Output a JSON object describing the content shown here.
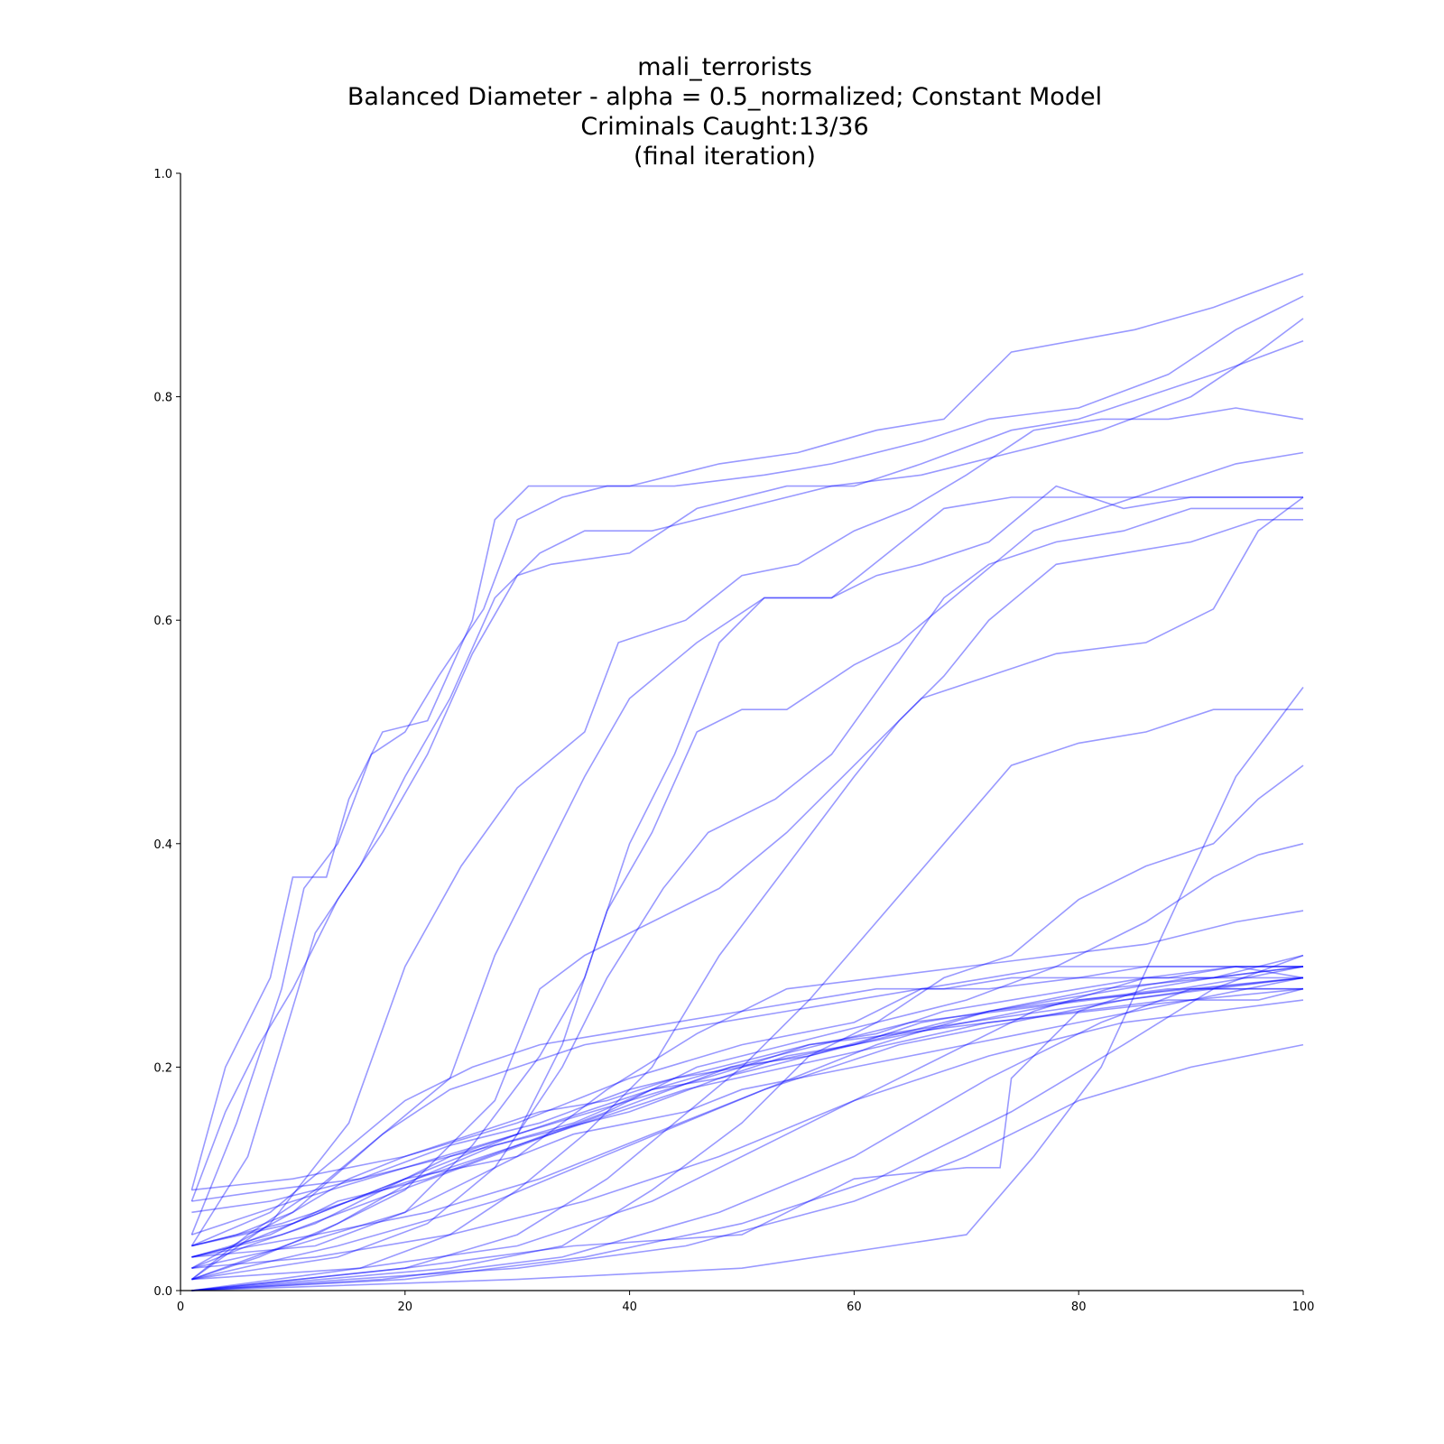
{
  "colors": {
    "line": "#0000ff",
    "axis": "#000000",
    "background": "#ffffff"
  },
  "chart_data": {
    "type": "line",
    "title_lines": [
      "mali_terrorists",
      "Balanced Diameter - alpha = 0.5_normalized; Constant Model",
      "Criminals Caught:13/36",
      "(final iteration)"
    ],
    "xlim": [
      0,
      100
    ],
    "ylim": [
      0,
      1.0
    ],
    "xticks": [
      0,
      20,
      40,
      60,
      80,
      100
    ],
    "yticks": [
      0.0,
      0.2,
      0.4,
      0.6,
      0.8,
      1.0
    ],
    "xtick_labels": [
      "0",
      "20",
      "40",
      "60",
      "80",
      "100"
    ],
    "ytick_labels": [
      "0.0",
      "0.2",
      "0.4",
      "0.6",
      "0.8",
      "1.0"
    ],
    "grid": false,
    "legend": false,
    "line_alpha": 0.4,
    "series": [
      {
        "x": [
          1,
          4,
          8,
          10,
          13,
          15,
          18,
          22,
          26,
          28,
          31,
          35,
          40,
          48,
          55,
          62,
          68,
          74,
          85,
          92,
          100
        ],
        "y": [
          0.09,
          0.2,
          0.28,
          0.37,
          0.37,
          0.44,
          0.5,
          0.51,
          0.6,
          0.69,
          0.72,
          0.72,
          0.72,
          0.74,
          0.75,
          0.77,
          0.78,
          0.84,
          0.86,
          0.88,
          0.91
        ]
      },
      {
        "x": [
          1,
          5,
          9,
          11,
          14,
          17,
          20,
          23,
          27,
          30,
          34,
          38,
          44,
          52,
          58,
          66,
          72,
          80,
          88,
          94,
          100
        ],
        "y": [
          0.05,
          0.15,
          0.27,
          0.36,
          0.4,
          0.48,
          0.5,
          0.55,
          0.61,
          0.69,
          0.71,
          0.72,
          0.72,
          0.73,
          0.74,
          0.76,
          0.78,
          0.79,
          0.82,
          0.86,
          0.89
        ]
      },
      {
        "x": [
          1,
          6,
          9,
          12,
          16,
          20,
          24,
          28,
          32,
          36,
          42,
          50,
          58,
          66,
          74,
          82,
          90,
          96,
          100
        ],
        "y": [
          0.04,
          0.12,
          0.22,
          0.32,
          0.38,
          0.46,
          0.53,
          0.62,
          0.66,
          0.68,
          0.68,
          0.7,
          0.72,
          0.73,
          0.75,
          0.77,
          0.8,
          0.84,
          0.87
        ]
      },
      {
        "x": [
          1,
          4,
          7,
          10,
          14,
          18,
          22,
          26,
          30,
          33,
          40,
          46,
          54,
          60,
          66,
          74,
          80,
          86,
          92,
          100
        ],
        "y": [
          0.08,
          0.16,
          0.22,
          0.27,
          0.35,
          0.41,
          0.48,
          0.57,
          0.64,
          0.65,
          0.66,
          0.7,
          0.72,
          0.72,
          0.74,
          0.77,
          0.78,
          0.8,
          0.82,
          0.85
        ]
      },
      {
        "x": [
          1,
          8,
          15,
          20,
          25,
          30,
          36,
          39,
          45,
          50,
          55,
          60,
          65,
          70,
          76,
          82,
          88,
          94,
          100
        ],
        "y": [
          0.01,
          0.06,
          0.15,
          0.29,
          0.38,
          0.45,
          0.5,
          0.58,
          0.6,
          0.64,
          0.65,
          0.68,
          0.7,
          0.73,
          0.77,
          0.78,
          0.78,
          0.79,
          0.78
        ]
      },
      {
        "x": [
          1,
          10,
          18,
          24,
          28,
          32,
          36,
          40,
          46,
          52,
          58,
          63,
          68,
          74,
          80,
          86,
          92,
          100
        ],
        "y": [
          0.02,
          0.07,
          0.14,
          0.19,
          0.3,
          0.38,
          0.46,
          0.53,
          0.58,
          0.62,
          0.62,
          0.66,
          0.7,
          0.71,
          0.71,
          0.71,
          0.71,
          0.71
        ]
      },
      {
        "x": [
          1,
          12,
          20,
          26,
          32,
          36,
          40,
          44,
          48,
          52,
          58,
          62,
          66,
          72,
          78,
          84,
          90,
          96,
          100
        ],
        "y": [
          0.03,
          0.04,
          0.07,
          0.13,
          0.21,
          0.28,
          0.4,
          0.48,
          0.58,
          0.62,
          0.62,
          0.64,
          0.65,
          0.67,
          0.72,
          0.7,
          0.71,
          0.71,
          0.71
        ]
      },
      {
        "x": [
          1,
          10,
          20,
          30,
          34,
          38,
          42,
          46,
          50,
          54,
          60,
          64,
          70,
          76,
          82,
          88,
          94,
          100
        ],
        "y": [
          0.04,
          0.06,
          0.1,
          0.14,
          0.22,
          0.34,
          0.41,
          0.5,
          0.52,
          0.52,
          0.56,
          0.58,
          0.63,
          0.68,
          0.7,
          0.72,
          0.74,
          0.75
        ]
      },
      {
        "x": [
          1,
          14,
          22,
          28,
          34,
          38,
          43,
          47,
          53,
          58,
          63,
          68,
          72,
          78,
          84,
          90,
          96,
          100
        ],
        "y": [
          0.01,
          0.03,
          0.06,
          0.11,
          0.2,
          0.28,
          0.36,
          0.41,
          0.44,
          0.48,
          0.55,
          0.62,
          0.65,
          0.67,
          0.68,
          0.7,
          0.7,
          0.7
        ]
      },
      {
        "x": [
          1,
          16,
          24,
          30,
          36,
          42,
          48,
          54,
          60,
          64,
          68,
          72,
          78,
          84,
          90,
          96,
          100
        ],
        "y": [
          0.0,
          0.02,
          0.05,
          0.09,
          0.14,
          0.2,
          0.3,
          0.38,
          0.46,
          0.51,
          0.55,
          0.6,
          0.65,
          0.66,
          0.67,
          0.69,
          0.69
        ]
      },
      {
        "x": [
          1,
          12,
          20,
          28,
          32,
          36,
          42,
          48,
          54,
          60,
          66,
          72,
          78,
          86,
          92,
          96,
          100
        ],
        "y": [
          0.01,
          0.05,
          0.09,
          0.17,
          0.27,
          0.3,
          0.33,
          0.36,
          0.41,
          0.47,
          0.53,
          0.55,
          0.57,
          0.58,
          0.61,
          0.68,
          0.71
        ]
      },
      {
        "x": [
          1,
          20,
          30,
          38,
          44,
          50,
          56,
          62,
          68,
          74,
          80,
          86,
          92,
          100
        ],
        "y": [
          0.0,
          0.02,
          0.05,
          0.1,
          0.15,
          0.2,
          0.26,
          0.33,
          0.4,
          0.47,
          0.49,
          0.5,
          0.52,
          0.52
        ]
      },
      {
        "x": [
          1,
          24,
          34,
          42,
          50,
          56,
          62,
          68,
          74,
          80,
          86,
          92,
          96,
          100
        ],
        "y": [
          0.0,
          0.02,
          0.04,
          0.09,
          0.15,
          0.21,
          0.24,
          0.28,
          0.3,
          0.35,
          0.38,
          0.4,
          0.44,
          0.47
        ]
      },
      {
        "x": [
          1,
          8,
          14,
          22,
          30,
          38,
          46,
          54,
          62,
          70,
          78,
          86,
          92,
          96,
          100
        ],
        "y": [
          0.03,
          0.05,
          0.08,
          0.1,
          0.13,
          0.16,
          0.2,
          0.22,
          0.24,
          0.26,
          0.29,
          0.33,
          0.37,
          0.39,
          0.4
        ]
      },
      {
        "x": [
          1,
          5,
          10,
          15,
          20,
          26,
          32,
          38,
          44,
          50,
          56,
          62,
          68,
          74,
          80,
          86,
          92,
          100
        ],
        "y": [
          0.04,
          0.05,
          0.07,
          0.1,
          0.12,
          0.14,
          0.16,
          0.17,
          0.19,
          0.2,
          0.22,
          0.23,
          0.25,
          0.26,
          0.27,
          0.28,
          0.28,
          0.29
        ]
      },
      {
        "x": [
          1,
          6,
          12,
          18,
          24,
          30,
          36,
          42,
          48,
          54,
          60,
          66,
          72,
          78,
          84,
          90,
          96,
          100
        ],
        "y": [
          0.02,
          0.04,
          0.06,
          0.09,
          0.12,
          0.14,
          0.16,
          0.18,
          0.19,
          0.21,
          0.22,
          0.24,
          0.25,
          0.26,
          0.27,
          0.28,
          0.28,
          0.28
        ]
      },
      {
        "x": [
          1,
          7,
          14,
          21,
          28,
          35,
          42,
          49,
          56,
          63,
          70,
          77,
          84,
          91,
          100
        ],
        "y": [
          0.01,
          0.03,
          0.06,
          0.1,
          0.13,
          0.15,
          0.18,
          0.2,
          0.21,
          0.23,
          0.24,
          0.25,
          0.26,
          0.27,
          0.28
        ]
      },
      {
        "x": [
          1,
          9,
          17,
          25,
          33,
          41,
          49,
          57,
          65,
          73,
          81,
          89,
          95,
          100
        ],
        "y": [
          0.03,
          0.05,
          0.08,
          0.11,
          0.14,
          0.17,
          0.2,
          0.22,
          0.24,
          0.25,
          0.26,
          0.27,
          0.28,
          0.29
        ]
      },
      {
        "x": [
          1,
          10,
          20,
          30,
          40,
          50,
          60,
          70,
          80,
          90,
          100
        ],
        "y": [
          0.05,
          0.08,
          0.11,
          0.14,
          0.17,
          0.2,
          0.22,
          0.24,
          0.26,
          0.27,
          0.27
        ]
      },
      {
        "x": [
          1,
          8,
          16,
          24,
          32,
          40,
          48,
          56,
          64,
          72,
          80,
          88,
          96,
          100
        ],
        "y": [
          0.07,
          0.08,
          0.1,
          0.13,
          0.15,
          0.18,
          0.2,
          0.22,
          0.23,
          0.24,
          0.25,
          0.26,
          0.26,
          0.27
        ]
      },
      {
        "x": [
          1,
          12,
          24,
          36,
          48,
          60,
          72,
          84,
          92,
          100
        ],
        "y": [
          0.02,
          0.03,
          0.05,
          0.08,
          0.12,
          0.17,
          0.21,
          0.24,
          0.25,
          0.26
        ]
      },
      {
        "x": [
          1,
          15,
          30,
          45,
          60,
          70,
          80,
          90,
          100
        ],
        "y": [
          0.0,
          0.01,
          0.02,
          0.04,
          0.08,
          0.12,
          0.17,
          0.2,
          0.22
        ]
      },
      {
        "x": [
          1,
          20,
          35,
          50,
          60,
          70,
          73,
          74,
          80,
          86,
          92,
          96,
          100
        ],
        "y": [
          0.0,
          0.02,
          0.04,
          0.05,
          0.1,
          0.11,
          0.11,
          0.19,
          0.25,
          0.27,
          0.28,
          0.29,
          0.29
        ]
      },
      {
        "x": [
          1,
          10,
          20,
          30,
          40,
          50,
          60,
          66,
          72,
          78,
          84,
          90,
          96,
          100
        ],
        "y": [
          0.09,
          0.1,
          0.12,
          0.15,
          0.19,
          0.22,
          0.24,
          0.27,
          0.28,
          0.29,
          0.29,
          0.29,
          0.29,
          0.3
        ]
      },
      {
        "x": [
          1,
          9,
          18,
          27,
          36,
          45,
          54,
          63,
          72,
          81,
          90,
          100
        ],
        "y": [
          0.04,
          0.06,
          0.09,
          0.12,
          0.15,
          0.18,
          0.2,
          0.22,
          0.24,
          0.25,
          0.26,
          0.27
        ]
      },
      {
        "x": [
          1,
          6,
          12,
          18,
          24,
          30,
          36,
          42,
          48,
          54,
          60,
          66,
          72,
          80,
          88,
          94,
          100
        ],
        "y": [
          0.01,
          0.05,
          0.09,
          0.14,
          0.18,
          0.2,
          0.22,
          0.23,
          0.24,
          0.25,
          0.26,
          0.27,
          0.27,
          0.28,
          0.28,
          0.29,
          0.29
        ]
      },
      {
        "x": [
          1,
          14,
          28,
          40,
          52,
          64,
          74,
          84,
          92,
          100
        ],
        "y": [
          0.01,
          0.04,
          0.08,
          0.13,
          0.18,
          0.22,
          0.24,
          0.26,
          0.27,
          0.28
        ]
      },
      {
        "x": [
          1,
          10,
          20,
          30,
          38,
          46,
          54,
          62,
          70,
          78,
          86,
          94,
          100
        ],
        "y": [
          0.02,
          0.04,
          0.07,
          0.12,
          0.18,
          0.23,
          0.27,
          0.28,
          0.29,
          0.3,
          0.31,
          0.33,
          0.34
        ]
      },
      {
        "x": [
          1,
          18,
          34,
          48,
          60,
          72,
          82,
          90,
          100
        ],
        "y": [
          0.0,
          0.01,
          0.03,
          0.07,
          0.12,
          0.19,
          0.24,
          0.27,
          0.28
        ]
      },
      {
        "x": [
          1,
          8,
          16,
          24,
          32,
          40,
          48,
          56,
          64,
          72,
          80,
          88,
          100
        ],
        "y": [
          0.08,
          0.09,
          0.1,
          0.12,
          0.14,
          0.16,
          0.19,
          0.21,
          0.23,
          0.25,
          0.26,
          0.27,
          0.27
        ]
      },
      {
        "x": [
          1,
          12,
          22,
          32,
          42,
          52,
          62,
          72,
          82,
          92,
          100
        ],
        "y": [
          0.03,
          0.05,
          0.07,
          0.1,
          0.14,
          0.18,
          0.22,
          0.25,
          0.27,
          0.28,
          0.29
        ]
      },
      {
        "x": [
          1,
          16,
          30,
          42,
          54,
          66,
          76,
          86,
          94,
          100
        ],
        "y": [
          0.01,
          0.02,
          0.04,
          0.08,
          0.14,
          0.2,
          0.25,
          0.28,
          0.29,
          0.28
        ]
      },
      {
        "x": [
          1,
          20,
          36,
          50,
          62,
          74,
          84,
          92,
          100
        ],
        "y": [
          0.0,
          0.01,
          0.03,
          0.06,
          0.1,
          0.16,
          0.22,
          0.27,
          0.3
        ]
      },
      {
        "x": [
          1,
          5,
          10,
          15,
          20,
          25,
          30,
          35,
          40,
          45,
          50,
          55,
          60,
          65,
          70,
          75,
          80,
          85,
          90,
          95,
          100
        ],
        "y": [
          0.03,
          0.04,
          0.06,
          0.08,
          0.1,
          0.11,
          0.12,
          0.14,
          0.15,
          0.16,
          0.18,
          0.19,
          0.2,
          0.21,
          0.22,
          0.23,
          0.24,
          0.25,
          0.26,
          0.27,
          0.28
        ]
      },
      {
        "x": [
          1,
          30,
          50,
          70,
          76,
          82,
          88,
          94,
          100
        ],
        "y": [
          0.0,
          0.01,
          0.02,
          0.05,
          0.12,
          0.2,
          0.33,
          0.46,
          0.54
        ]
      },
      {
        "x": [
          1,
          8,
          14,
          20,
          26,
          32,
          38,
          44,
          50,
          56,
          62,
          68,
          74,
          80,
          86,
          92,
          100
        ],
        "y": [
          0.04,
          0.07,
          0.12,
          0.17,
          0.2,
          0.22,
          0.23,
          0.24,
          0.25,
          0.26,
          0.27,
          0.27,
          0.28,
          0.28,
          0.29,
          0.29,
          0.29
        ]
      }
    ]
  }
}
